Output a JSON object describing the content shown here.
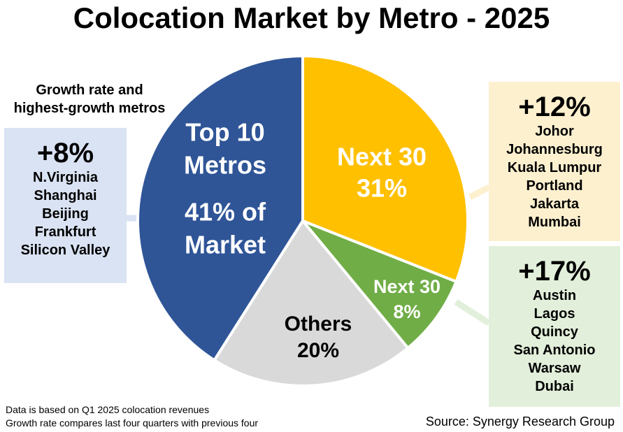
{
  "title": "Colocation Market by Metro - 2025",
  "growth_heading": [
    "Growth rate and",
    "highest-growth metros"
  ],
  "groups": {
    "top10": {
      "growth": "+8%",
      "metros": [
        "N.Virginia",
        "Shanghai",
        "Beijing",
        "Frankfurt",
        "Silicon Valley"
      ]
    },
    "next30a": {
      "growth": "+12%",
      "metros": [
        "Johor",
        "Johannesburg",
        "Kuala Lumpur",
        "Portland",
        "Jakarta",
        "Mumbai"
      ]
    },
    "next30b": {
      "growth": "+17%",
      "metros": [
        "Austin",
        "Lagos",
        "Quincy",
        "San Antonio",
        "Warsaw",
        "Dubai"
      ]
    }
  },
  "notes": [
    "Data is based on Q1 2025 colocation revenues",
    "Growth rate compares last four quarters with previous four"
  ],
  "source": "Source: Synergy Research Group",
  "colors": {
    "top10": "#2f5597",
    "next30a": "#ffc000",
    "next30b": "#70ad47",
    "others": "#d9d9d9"
  },
  "chart_data": {
    "type": "pie",
    "title": "Colocation Market by Metro - 2025",
    "start_angle_deg": 0,
    "direction": "clockwise",
    "slices": [
      {
        "key": "next30a",
        "labels": [
          "Next 30",
          "31%"
        ],
        "value": 31,
        "color": "#ffc000"
      },
      {
        "key": "next30b",
        "labels": [
          "Next 30",
          "8%"
        ],
        "value": 8,
        "color": "#70ad47"
      },
      {
        "key": "others",
        "labels": [
          "Others",
          "20%"
        ],
        "value": 20,
        "color": "#d9d9d9"
      },
      {
        "key": "top10",
        "labels": [
          "Top 10",
          "Metros",
          "41% of",
          "Market"
        ],
        "value": 41,
        "color": "#2f5597"
      }
    ]
  }
}
